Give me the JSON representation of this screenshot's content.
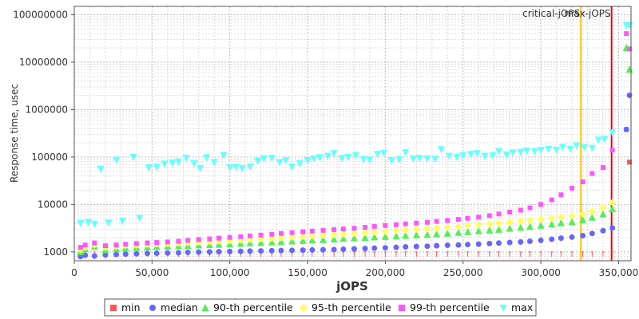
{
  "chart_data": {
    "type": "scatter",
    "title": "",
    "xlabel": "jOPS",
    "ylabel": "Response time, usec",
    "x_scale": "linear",
    "y_scale": "log",
    "xlim": [
      0,
      358000
    ],
    "ylim": [
      650,
      150000000
    ],
    "grid": true,
    "legend_position": "bottom",
    "x_ticks": [
      {
        "value": 0,
        "label": "0"
      },
      {
        "value": 50000,
        "label": "50,000"
      },
      {
        "value": 100000,
        "label": "100,000"
      },
      {
        "value": 150000,
        "label": "150,000"
      },
      {
        "value": 200000,
        "label": "200,000"
      },
      {
        "value": 250000,
        "label": "250,000"
      },
      {
        "value": 300000,
        "label": "300,000"
      },
      {
        "value": 350000,
        "label": "350,000"
      }
    ],
    "y_ticks": [
      {
        "value": 1000,
        "label": "1000"
      },
      {
        "value": 10000,
        "label": "10000"
      },
      {
        "value": 100000,
        "label": "100000"
      },
      {
        "value": 1000000,
        "label": "1000000"
      },
      {
        "value": 10000000,
        "label": "10000000"
      },
      {
        "value": 100000000,
        "label": "100000000"
      }
    ],
    "reference_lines": [
      {
        "name": "critical-jOPS",
        "x": 325800,
        "color": "#ffc000"
      },
      {
        "name": "max-jOPS",
        "x": 345500,
        "color": "#ee0000"
      }
    ],
    "series": [
      {
        "name": "min",
        "color": "#ff5555",
        "marker": "square",
        "x": [
          4000,
          7000,
          13000,
          20000,
          27000,
          33000,
          40000,
          47000,
          53000,
          60000,
          67000,
          73000,
          80000,
          87000,
          93000,
          100000,
          107000,
          113000,
          120000,
          127000,
          133000,
          140000,
          147000,
          153000,
          160000,
          167000,
          173000,
          180000,
          187000,
          193000,
          200000,
          207000,
          213000,
          220000,
          227000,
          233000,
          240000,
          247000,
          253000,
          260000,
          267000,
          273000,
          280000,
          287000,
          293000,
          300000,
          307000,
          313000,
          320000,
          327000,
          333000,
          340000,
          346000,
          355000,
          357000
        ],
        "y": [
          900,
          1000,
          1000,
          1000,
          1000,
          1000,
          1000,
          1000,
          1000,
          1000,
          1000,
          1000,
          1000,
          1000,
          1000,
          1000,
          1000,
          1000,
          1000,
          1000,
          1000,
          1000,
          1000,
          1000,
          1000,
          1000,
          1000,
          1000,
          1000,
          1000,
          1000,
          1000,
          1000,
          1000,
          1000,
          1000,
          1000,
          1000,
          1000,
          1000,
          1000,
          1000,
          1000,
          1000,
          1000,
          1000,
          1000,
          1000,
          1000,
          1000,
          1000,
          1000,
          1000,
          380000,
          78000
        ]
      },
      {
        "name": "median",
        "color": "#6666ff",
        "marker": "circle",
        "x": [
          4000,
          7000,
          13000,
          20000,
          27000,
          33000,
          40000,
          47000,
          53000,
          60000,
          67000,
          73000,
          80000,
          87000,
          93000,
          100000,
          107000,
          113000,
          120000,
          127000,
          133000,
          140000,
          147000,
          153000,
          160000,
          167000,
          173000,
          180000,
          187000,
          193000,
          200000,
          207000,
          213000,
          220000,
          227000,
          233000,
          240000,
          247000,
          253000,
          260000,
          267000,
          273000,
          280000,
          287000,
          293000,
          300000,
          307000,
          313000,
          320000,
          327000,
          333000,
          340000,
          346000,
          355000,
          357000
        ],
        "y": [
          800,
          850,
          820,
          860,
          880,
          900,
          910,
          930,
          940,
          950,
          960,
          980,
          990,
          1000,
          1010,
          1020,
          1030,
          1040,
          1050,
          1060,
          1070,
          1080,
          1090,
          1100,
          1110,
          1120,
          1140,
          1160,
          1180,
          1200,
          1220,
          1250,
          1280,
          1300,
          1320,
          1350,
          1380,
          1400,
          1430,
          1460,
          1500,
          1540,
          1580,
          1620,
          1680,
          1750,
          1850,
          1950,
          2050,
          2200,
          2450,
          2800,
          3200,
          380000,
          2000000
        ]
      },
      {
        "name": "90-th percentile",
        "color": "#55ee55",
        "marker": "triangle-up",
        "x": [
          4000,
          7000,
          13000,
          20000,
          27000,
          33000,
          40000,
          47000,
          53000,
          60000,
          67000,
          73000,
          80000,
          87000,
          93000,
          100000,
          107000,
          113000,
          120000,
          127000,
          133000,
          140000,
          147000,
          153000,
          160000,
          167000,
          173000,
          180000,
          187000,
          193000,
          200000,
          207000,
          213000,
          220000,
          227000,
          233000,
          240000,
          247000,
          253000,
          260000,
          267000,
          273000,
          280000,
          287000,
          293000,
          300000,
          307000,
          313000,
          320000,
          327000,
          333000,
          340000,
          346000,
          355000,
          357000
        ],
        "y": [
          1000,
          1150,
          1300,
          1100,
          1150,
          1200,
          1220,
          1250,
          1280,
          1300,
          1330,
          1350,
          1380,
          1400,
          1430,
          1460,
          1500,
          1530,
          1560,
          1600,
          1640,
          1680,
          1720,
          1760,
          1800,
          1850,
          1900,
          1950,
          2000,
          2050,
          2100,
          2150,
          2200,
          2250,
          2300,
          2380,
          2450,
          2550,
          2650,
          2750,
          2850,
          2950,
          3100,
          3250,
          3400,
          3600,
          3800,
          4050,
          4300,
          4700,
          5300,
          6300,
          8000,
          20000000,
          7000000
        ]
      },
      {
        "name": "95-th percentile",
        "color": "#ffff55",
        "marker": "diamond",
        "x": [
          4000,
          7000,
          13000,
          20000,
          27000,
          33000,
          40000,
          47000,
          53000,
          60000,
          67000,
          73000,
          80000,
          87000,
          93000,
          100000,
          107000,
          113000,
          120000,
          127000,
          133000,
          140000,
          147000,
          153000,
          160000,
          167000,
          173000,
          180000,
          187000,
          193000,
          200000,
          207000,
          213000,
          220000,
          227000,
          233000,
          240000,
          247000,
          253000,
          260000,
          267000,
          273000,
          280000,
          287000,
          293000,
          300000,
          307000,
          313000,
          320000,
          327000,
          333000,
          340000,
          346000
        ],
        "y": [
          1100,
          1250,
          1400,
          1250,
          1300,
          1350,
          1380,
          1420,
          1450,
          1480,
          1520,
          1560,
          1600,
          1640,
          1680,
          1720,
          1770,
          1820,
          1870,
          1920,
          1980,
          2040,
          2100,
          2160,
          2230,
          2300,
          2370,
          2450,
          2530,
          2610,
          2700,
          2800,
          2900,
          3000,
          3100,
          3200,
          3300,
          3450,
          3600,
          3750,
          3900,
          4050,
          4250,
          4450,
          4650,
          4900,
          5150,
          5450,
          5800,
          6300,
          7100,
          8600,
          11000
        ]
      },
      {
        "name": "99-th percentile",
        "color": "#ff55ff",
        "marker": "square",
        "x": [
          4000,
          7000,
          13000,
          20000,
          27000,
          33000,
          40000,
          47000,
          53000,
          60000,
          67000,
          73000,
          80000,
          87000,
          93000,
          100000,
          107000,
          113000,
          120000,
          127000,
          133000,
          140000,
          147000,
          153000,
          160000,
          167000,
          173000,
          180000,
          187000,
          193000,
          200000,
          207000,
          213000,
          220000,
          227000,
          233000,
          240000,
          247000,
          253000,
          260000,
          267000,
          273000,
          280000,
          287000,
          293000,
          300000,
          307000,
          313000,
          320000,
          327000,
          333000,
          340000,
          346000,
          355000,
          357000
        ],
        "y": [
          1250,
          1400,
          1550,
          1350,
          1400,
          1450,
          1500,
          1550,
          1580,
          1620,
          1680,
          1750,
          1820,
          1880,
          1950,
          2020,
          2100,
          2180,
          2260,
          2350,
          2450,
          2550,
          2650,
          2750,
          2850,
          2950,
          3050,
          3150,
          3300,
          3450,
          3600,
          3750,
          3900,
          4050,
          4200,
          4400,
          4600,
          4850,
          5100,
          5400,
          5800,
          6300,
          6900,
          7600,
          8500,
          10000,
          12500,
          16000,
          22000,
          30000,
          45000,
          60000,
          140000,
          40000000,
          19000000
        ]
      },
      {
        "name": "max",
        "color": "#66ffff",
        "marker": "triangle-down",
        "x": [
          4000,
          9000,
          13000,
          17000,
          22000,
          27000,
          31000,
          38000,
          42000,
          48000,
          53000,
          58000,
          63000,
          67000,
          72000,
          77000,
          81000,
          85000,
          90000,
          96000,
          100000,
          104000,
          108000,
          113000,
          118000,
          122000,
          127000,
          132000,
          136000,
          140000,
          145000,
          150000,
          154000,
          158000,
          163000,
          167000,
          172000,
          176000,
          181000,
          186000,
          190000,
          195000,
          199000,
          204000,
          209000,
          213000,
          218000,
          222000,
          227000,
          232000,
          236000,
          241000,
          246000,
          250000,
          255000,
          259000,
          264000,
          269000,
          273000,
          278000,
          282000,
          287000,
          291000,
          296000,
          300000,
          305000,
          310000,
          314000,
          319000,
          323000,
          328000,
          333000,
          337000,
          341000,
          346000,
          355000,
          357000
        ],
        "y": [
          4000,
          4200,
          3900,
          56000,
          4100,
          87000,
          4500,
          100000,
          5200,
          60000,
          62000,
          72000,
          75000,
          80000,
          96000,
          73000,
          58000,
          98000,
          78000,
          110000,
          60000,
          62000,
          58000,
          63000,
          83000,
          93000,
          96000,
          78000,
          85000,
          62000,
          73000,
          85000,
          93000,
          98000,
          105000,
          120000,
          95000,
          100000,
          108000,
          89000,
          88000,
          115000,
          122000,
          85000,
          90000,
          125000,
          93000,
          95000,
          93000,
          92000,
          145000,
          105000,
          100000,
          108000,
          115000,
          120000,
          105000,
          108000,
          132000,
          112000,
          125000,
          128000,
          135000,
          132000,
          140000,
          148000,
          142000,
          162000,
          148000,
          175000,
          160000,
          155000,
          230000,
          240000,
          330000,
          60000000,
          60000000
        ]
      }
    ]
  }
}
